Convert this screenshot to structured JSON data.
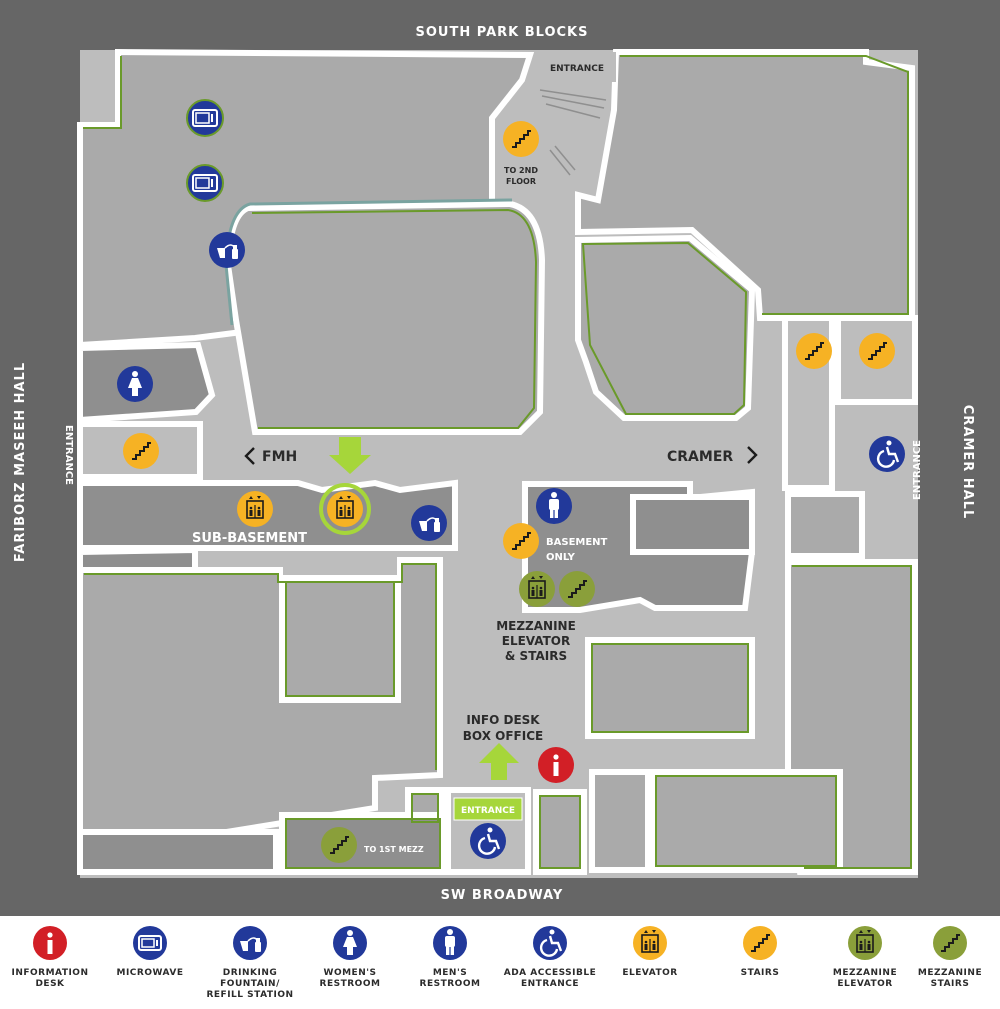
{
  "streets": {
    "top": "SOUTH PARK BLOCKS",
    "bottom": "SW BROADWAY",
    "left": "FARIBORZ MASEEH HALL",
    "right": "CRAMER HALL"
  },
  "labels": {
    "entrance_top": "ENTRANCE",
    "entrance_left": "ENTRANCE",
    "entrance_right": "ENTRANCE",
    "entrance_bottom": "ENTRANCE",
    "to_2nd_floor_line1": "TO 2ND",
    "to_2nd_floor_line2": "FLOOR",
    "fmh": "FMH",
    "cramer": "CRAMER",
    "sub_basement": "SUB-BASEMENT",
    "basement_only_line1": "BASEMENT",
    "basement_only_line2": "ONLY",
    "mezz_line1": "MEZZANINE",
    "mezz_line2": "ELEVATOR",
    "mezz_line3": "& STAIRS",
    "info_line1": "INFO DESK",
    "info_line2": "BOX OFFICE",
    "to_1st_mezz": "TO 1ST MEZZ"
  },
  "colors": {
    "street": "#666666",
    "floor": "#bdbdbd",
    "room": "#aaaaaa",
    "dark_room": "#8f8f8f",
    "wall": "#ffffff",
    "green_trim": "#6a9a2a",
    "accent_green": "#a6d63a",
    "info_red": "#d21f26",
    "blue": "#22399a",
    "orange": "#f6b224",
    "olive": "#8a9f3a"
  },
  "legend": [
    {
      "icon": "info-icon",
      "label": "INFORMATION\nDESK",
      "color": "#d21f26"
    },
    {
      "icon": "microwave-icon",
      "label": "MICROWAVE",
      "color": "#22399a"
    },
    {
      "icon": "drinking-fountain-icon",
      "label": "DRINKING\nFOUNTAIN/\nREFILL STATION",
      "color": "#22399a"
    },
    {
      "icon": "womens-restroom-icon",
      "label": "WOMEN'S\nRESTROOM",
      "color": "#22399a"
    },
    {
      "icon": "mens-restroom-icon",
      "label": "MEN'S\nRESTROOM",
      "color": "#22399a"
    },
    {
      "icon": "ada-icon",
      "label": "ADA ACCESSIBLE\nENTRANCE",
      "color": "#22399a"
    },
    {
      "icon": "elevator-icon",
      "label": "ELEVATOR",
      "color": "#f6b224"
    },
    {
      "icon": "stairs-icon",
      "label": "STAIRS",
      "color": "#f6b224"
    },
    {
      "icon": "mezzanine-elevator-icon",
      "label": "MEZZANINE\nELEVATOR",
      "color": "#8a9f3a"
    },
    {
      "icon": "mezzanine-stairs-icon",
      "label": "MEZZANINE\nSTAIRS",
      "color": "#8a9f3a"
    }
  ]
}
